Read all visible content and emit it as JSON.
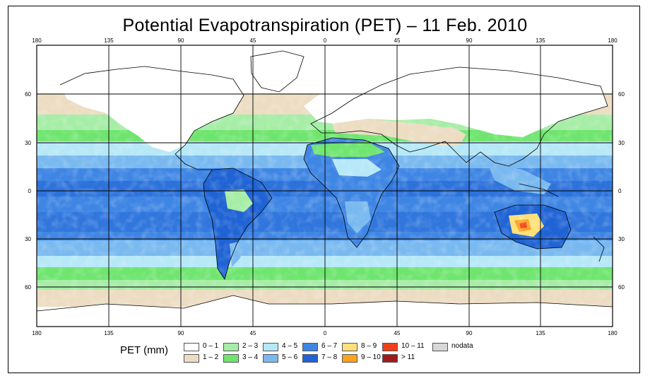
{
  "title": "Potential Evapotranspiration (PET) – 11 Feb. 2010",
  "axes": {
    "lon_top": [
      "180",
      "135",
      "90",
      "45",
      "0",
      "45",
      "90",
      "135",
      "180"
    ],
    "lon_bottom": [
      "180",
      "135",
      "90",
      "45",
      "0",
      "45",
      "90",
      "135",
      "180"
    ],
    "lat_left": [
      "60",
      "30",
      "0",
      "30",
      "60"
    ],
    "lat_right": [
      "60",
      "30",
      "0",
      "30",
      "60"
    ]
  },
  "legend": {
    "title": "PET (mm)",
    "items": [
      {
        "label": "0 – 1",
        "color": "#ffffff"
      },
      {
        "label": "1 – 2",
        "color": "#ecdcc2"
      },
      {
        "label": "2 – 3",
        "color": "#a6eda6"
      },
      {
        "label": "3 – 4",
        "color": "#6fe56f"
      },
      {
        "label": "4 – 5",
        "color": "#b6e8f7"
      },
      {
        "label": "5 – 6",
        "color": "#79b9ef"
      },
      {
        "label": "6 – 7",
        "color": "#3f86e4"
      },
      {
        "label": "7 – 8",
        "color": "#1f63d4"
      },
      {
        "label": "8 – 9",
        "color": "#ffe07a"
      },
      {
        "label": "9 – 10",
        "color": "#ffa21f"
      },
      {
        "label": "10 – 11",
        "color": "#f04018"
      },
      {
        "label": "> 11",
        "color": "#a01c1c"
      },
      {
        "label": "nodata",
        "color": "#d8d8d8"
      }
    ]
  }
}
